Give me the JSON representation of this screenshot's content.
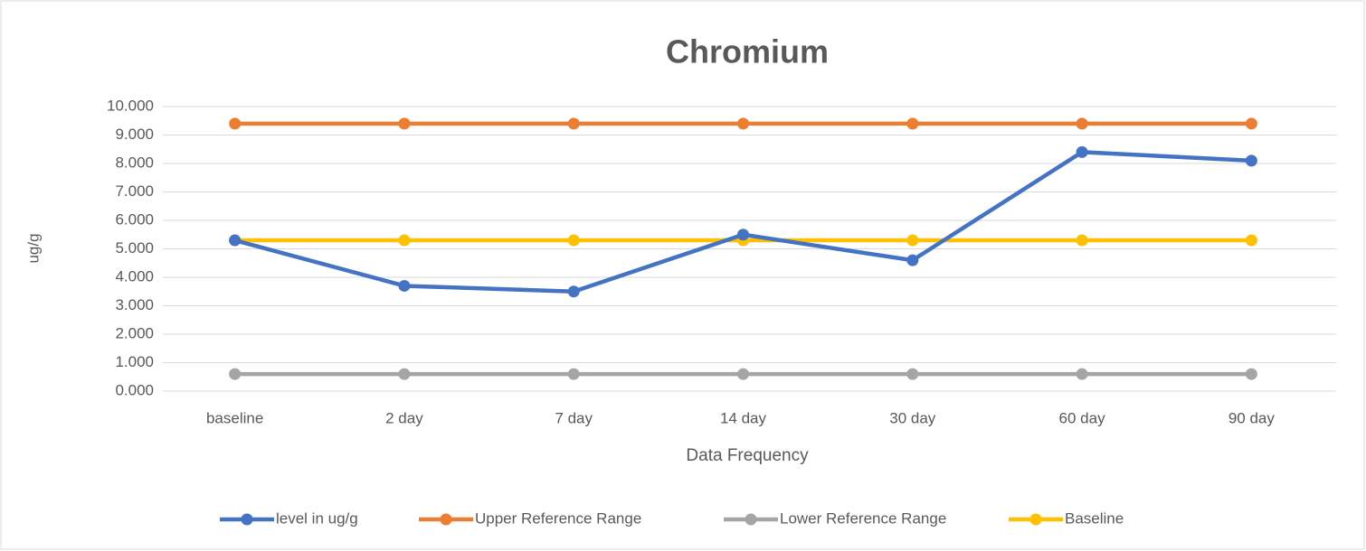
{
  "chart_data": {
    "type": "line",
    "title": "Chromium",
    "x_label": "Data Frequency",
    "y_label": "ug/g",
    "categories": [
      "baseline",
      "2 day",
      "7 day",
      "14 day",
      "30 day",
      "60 day",
      "90 day"
    ],
    "series": [
      {
        "name": "level in ug/g",
        "color": "#4472c4",
        "values": [
          5.3,
          3.7,
          3.5,
          5.5,
          4.6,
          8.4,
          8.1
        ]
      },
      {
        "name": "Upper  Reference Range",
        "color": "#ed7d31",
        "values": [
          9.4,
          9.4,
          9.4,
          9.4,
          9.4,
          9.4,
          9.4
        ]
      },
      {
        "name": "Lower Reference Range",
        "color": "#a5a5a5",
        "values": [
          0.6,
          0.6,
          0.6,
          0.6,
          0.6,
          0.6,
          0.6
        ]
      },
      {
        "name": "Baseline",
        "color": "#ffc000",
        "values": [
          5.3,
          5.3,
          5.3,
          5.3,
          5.3,
          5.3,
          5.3
        ]
      }
    ],
    "ylim": [
      0,
      10
    ],
    "yticks": [
      {
        "value": 0,
        "label": "0.000"
      },
      {
        "value": 1,
        "label": "1.000"
      },
      {
        "value": 2,
        "label": "2.000"
      },
      {
        "value": 3,
        "label": "3.000"
      },
      {
        "value": 4,
        "label": "4.000"
      },
      {
        "value": 5,
        "label": "5.000"
      },
      {
        "value": 6,
        "label": "6.000"
      },
      {
        "value": 7,
        "label": "7.000"
      },
      {
        "value": 8,
        "label": "8.000"
      },
      {
        "value": 9,
        "label": "9.000"
      },
      {
        "value": 10,
        "label": "10.000"
      }
    ],
    "grid": true,
    "legend": "bottom"
  }
}
